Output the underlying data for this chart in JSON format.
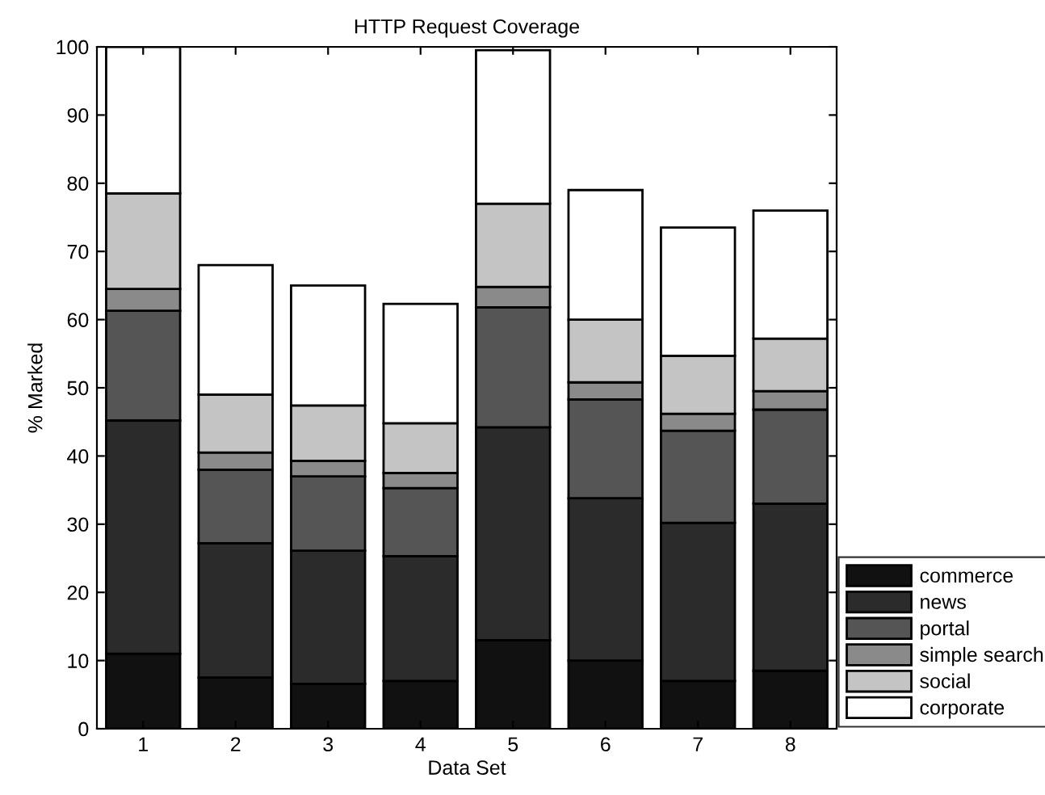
{
  "chart_data": {
    "type": "bar",
    "stacked": true,
    "title": "HTTP Request Coverage",
    "xlabel": "Data Set",
    "ylabel": "% Marked",
    "categories": [
      "1",
      "2",
      "3",
      "4",
      "5",
      "6",
      "7",
      "8"
    ],
    "series": [
      {
        "name": "commerce",
        "color": "#111111",
        "values": [
          11,
          7.5,
          6.6,
          7,
          13,
          10,
          7,
          8.5
        ]
      },
      {
        "name": "news",
        "color": "#2b2b2b",
        "values": [
          34.2,
          19.7,
          19.5,
          18.3,
          31.2,
          23.8,
          23.2,
          24.5
        ]
      },
      {
        "name": "portal",
        "color": "#555555",
        "values": [
          16.1,
          10.8,
          10.9,
          10,
          17.6,
          14.5,
          13.5,
          13.8
        ]
      },
      {
        "name": "simple search",
        "color": "#8a8a8a",
        "values": [
          3.2,
          2.5,
          2.3,
          2.2,
          3,
          2.5,
          2.5,
          2.7
        ]
      },
      {
        "name": "social",
        "color": "#c4c4c4",
        "values": [
          14,
          8.5,
          8.1,
          7.3,
          12.2,
          9.2,
          8.5,
          7.7
        ]
      },
      {
        "name": "corporate",
        "color": "#ffffff",
        "values": [
          21.5,
          19,
          17.6,
          17.5,
          22.5,
          19,
          18.8,
          18.8
        ]
      }
    ],
    "ylim": [
      0,
      100
    ],
    "yticks": [
      0,
      10,
      20,
      30,
      40,
      50,
      60,
      70,
      80,
      90,
      100
    ],
    "grid": false,
    "legend": "bottom right"
  }
}
